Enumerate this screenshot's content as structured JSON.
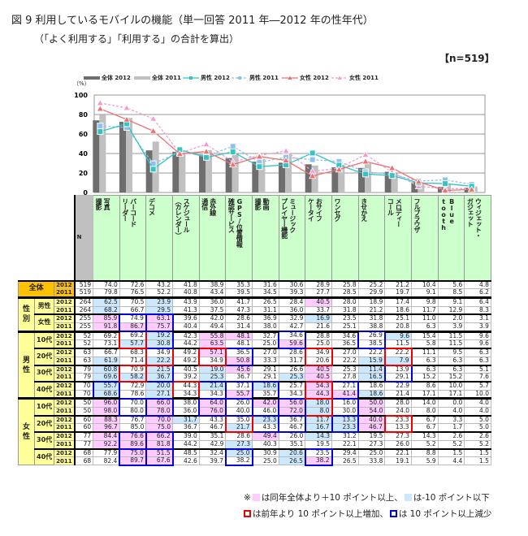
{
  "title": "図 9  利用しているモバイルの機能（単一回答  2011 年―2012 年の性年代）",
  "subtitle": "（「よく利用する」「利用する」の合計を算出）",
  "n_badge": "【n=519】",
  "colors": {
    "total2012": "#6e6e6e",
    "total2011": "#c0c0c0",
    "male2012": "#33c4c4",
    "male2011": "#8fc0f0",
    "female2012": "#f07070",
    "female2011": "#f59ccf",
    "pink": "#ffccff",
    "lightblue": "#cce8ff",
    "header_bg": "#ccffcc",
    "total_bg": "#ffc000",
    "group_bg": "#ffff99"
  },
  "chart_data": {
    "type": "bar+line",
    "ylabel": "（%）",
    "ylim": [
      0,
      100
    ],
    "yticks": [
      "0",
      "20",
      "40",
      "60",
      "80",
      "100"
    ],
    "grid": true,
    "legend_position": "top",
    "categories": [
      "写真撮影",
      "バーコードリーダー",
      "デコメ",
      "スケジュール（カレンダー）",
      "赤外線通信",
      "GPS/位置情報確認サービス",
      "動画撮影",
      "ミュージックプレイヤー機能",
      "おサイフケータイ",
      "ワンセグ",
      "きせかえ",
      "メロディーコール",
      "フルブラウザ",
      "Bluetooth",
      "ウィジェット・ガジェット"
    ],
    "series": [
      {
        "name": "全体 2012",
        "kind": "bar",
        "values": [
          74.0,
          72.6,
          43.2,
          41.8,
          38.9,
          35.3,
          31.6,
          30.6,
          28.9,
          25.8,
          25.2,
          21.2,
          10.4,
          5.6,
          4.8
        ]
      },
      {
        "name": "全体 2011",
        "kind": "bar",
        "values": [
          79.8,
          76.5,
          52.2,
          40.8,
          43.4,
          39.5,
          34.5,
          39.3,
          27.7,
          28.5,
          29.9,
          19.7,
          9.1,
          8.5,
          6.2
        ]
      },
      {
        "name": "男性 2012",
        "kind": "line",
        "marker": "square",
        "dashed": false,
        "values": [
          62.5,
          70.5,
          23.9,
          43.9,
          36.0,
          41.7,
          26.5,
          28.4,
          40.5,
          28.0,
          18.9,
          17.4,
          9.8,
          9.1,
          6.4
        ]
      },
      {
        "name": "男性 2011",
        "kind": "line",
        "marker": "square",
        "dashed": true,
        "values": [
          68.2,
          66.7,
          29.5,
          41.3,
          37.5,
          47.3,
          31.1,
          36.0,
          33.7,
          31.8,
          21.2,
          18.6,
          11.7,
          12.9,
          8.3
        ]
      },
      {
        "name": "女性 2012",
        "kind": "line",
        "marker": "triangle",
        "dashed": false,
        "values": [
          85.9,
          74.9,
          63.1,
          39.6,
          42.0,
          28.6,
          36.9,
          32.9,
          16.9,
          23.5,
          31.8,
          25.1,
          11.0,
          2.0,
          3.1
        ]
      },
      {
        "name": "女性 2011",
        "kind": "line",
        "marker": "triangle",
        "dashed": true,
        "values": [
          91.8,
          86.7,
          75.7,
          40.4,
          49.4,
          31.4,
          38.0,
          42.7,
          21.6,
          25.1,
          38.8,
          20.8,
          6.3,
          3.9,
          3.9
        ]
      }
    ]
  },
  "table": {
    "n_header": "N",
    "columns": [
      "写真\n撮影",
      "バーコード\nリーダー",
      "デコメ",
      "スケジュール\n（カレンダー）",
      "赤外線\n通信",
      "GPS/位置情報\n確認サービス",
      "動画\n撮影",
      "ミュージック\nプレイヤー機能",
      "おサイフ\nケータイ",
      "ワンセグ",
      "きせかえ",
      "メロディー\nコール",
      "フルブラウザ",
      "Blue\ntooth",
      "ウィジェット・\nガジェット"
    ],
    "sections": [
      {
        "group": "",
        "subgroups": [
          {
            "label": "全体",
            "rows": [
              {
                "year": "2012",
                "n": "519",
                "values": [
                  "74.0",
                  "72.6",
                  "43.2",
                  "41.8",
                  "38.9",
                  "35.3",
                  "31.6",
                  "30.6",
                  "28.9",
                  "25.8",
                  "25.2",
                  "21.2",
                  "10.4",
                  "5.6",
                  "4.8"
                ],
                "fill": "...............",
                "box": "..............."
              },
              {
                "year": "2011",
                "n": "519",
                "values": [
                  "79.8",
                  "76.5",
                  "52.2",
                  "40.8",
                  "43.4",
                  "39.5",
                  "34.5",
                  "39.3",
                  "27.7",
                  "28.5",
                  "29.9",
                  "19.7",
                  "9.1",
                  "8.5",
                  "6.2"
                ],
                "fill": "..............."
              }
            ]
          }
        ]
      },
      {
        "group": "性別",
        "subgroups": [
          {
            "label": "男性",
            "rows": [
              {
                "year": "2012",
                "n": "264",
                "values": [
                  "62.5",
                  "70.5",
                  "23.9",
                  "43.9",
                  "36.0",
                  "41.7",
                  "26.5",
                  "28.4",
                  "40.5",
                  "28.0",
                  "18.9",
                  "17.4",
                  "9.8",
                  "9.1",
                  "6.4"
                ],
                "fill": "b.b.....p......",
                "box": "..............."
              },
              {
                "year": "2011",
                "n": "264",
                "values": [
                  "68.2",
                  "66.7",
                  "29.5",
                  "41.3",
                  "37.5",
                  "47.3",
                  "31.1",
                  "36.0",
                  "33.7",
                  "31.8",
                  "21.2",
                  "18.6",
                  "11.7",
                  "12.9",
                  "8.3"
                ],
                "fill": "b.b............"
              }
            ]
          },
          {
            "label": "女性",
            "rows": [
              {
                "year": "2012",
                "n": "255",
                "values": [
                  "85.9",
                  "74.9",
                  "63.1",
                  "39.6",
                  "42.0",
                  "28.6",
                  "36.9",
                  "32.9",
                  "16.9",
                  "23.5",
                  "31.8",
                  "25.1",
                  "11.0",
                  "2.0",
                  "3.1"
                ],
                "fill": "p.p.....b......",
                "box": ".bb............"
              },
              {
                "year": "2011",
                "n": "255",
                "values": [
                  "91.8",
                  "86.7",
                  "75.7",
                  "40.4",
                  "49.4",
                  "31.4",
                  "38.0",
                  "42.7",
                  "21.6",
                  "25.1",
                  "38.8",
                  "20.8",
                  "6.3",
                  "3.9",
                  "3.9"
                ],
                "fill": "ppp............"
              }
            ]
          }
        ]
      },
      {
        "group": "男性",
        "subgroups": [
          {
            "label": "10代",
            "rows": [
              {
                "year": "2012",
                "n": "52",
                "values": [
                  "69.2",
                  "69.2",
                  "19.2",
                  "42.3",
                  "55.8",
                  "48.1",
                  "32.7",
                  "34.6",
                  "28.8",
                  "34.6",
                  "26.9",
                  "9.6",
                  "15.4",
                  "11.5",
                  "9.6"
                ],
                "fill": "..b.pp.....b...",
                "box": ".rb....b..b...."
              },
              {
                "year": "2011",
                "n": "52",
                "values": [
                  "73.1",
                  "57.7",
                  "30.8",
                  "44.2",
                  "63.5",
                  "48.1",
                  "25.0",
                  "59.6",
                  "25.0",
                  "36.5",
                  "38.5",
                  "11.5",
                  "5.8",
                  "11.5",
                  "9.6"
                ],
                "fill": ".bb.p..p......."
              }
            ]
          },
          {
            "label": "20代",
            "rows": [
              {
                "year": "2012",
                "n": "63",
                "values": [
                  "66.7",
                  "68.3",
                  "34.9",
                  "49.2",
                  "57.1",
                  "36.5",
                  "27.0",
                  "28.6",
                  "34.9",
                  "27.0",
                  "22.2",
                  "22.2",
                  "11.1",
                  "9.5",
                  "6.3"
                ],
                "fill": "....p..........",
                "box": "..r.rb..r..r..."
              },
              {
                "year": "2011",
                "n": "63",
                "values": [
                  "61.9",
                  "71.4",
                  "22.2",
                  "49.2",
                  "34.9",
                  "50.8",
                  "33.3",
                  "31.7",
                  "20.6",
                  "22.2",
                  "15.9",
                  "7.9",
                  "6.3",
                  "6.3",
                  "6.3"
                ],
                "fill": "b.b..p....bb..."
              }
            ]
          },
          {
            "label": "30代",
            "rows": [
              {
                "year": "2012",
                "n": "79",
                "values": [
                  "60.8",
                  "70.9",
                  "21.5",
                  "40.5",
                  "19.0",
                  "45.6",
                  "29.1",
                  "26.6",
                  "40.5",
                  "25.3",
                  "11.4",
                  "13.9",
                  "6.3",
                  "6.3",
                  "5.1"
                ],
                "fill": "b.b.bp..p.b....",
                "box": ".rb........b..."
              },
              {
                "year": "2011",
                "n": "79",
                "values": [
                  "69.6",
                  "58.2",
                  "36.7",
                  "39.2",
                  "25.3",
                  "36.7",
                  "29.1",
                  "25.3",
                  "40.5",
                  "27.8",
                  "16.5",
                  "29.1",
                  "15.2",
                  "15.2",
                  "7.6"
                ],
                "fill": "bbb.b..bp.b...."
              }
            ]
          },
          {
            "label": "40代",
            "rows": [
              {
                "year": "2012",
                "n": "70",
                "values": [
                  "55.7",
                  "72.9",
                  "20.0",
                  "44.3",
                  "21.4",
                  "37.1",
                  "18.6",
                  "25.7",
                  "54.3",
                  "27.1",
                  "18.6",
                  "22.9",
                  "8.6",
                  "10.0",
                  "5.7"
                ],
                "fill": "b.b.b.b.p......",
                "box": "b..rbbb.rb....."
              },
              {
                "year": "2011",
                "n": "70",
                "values": [
                  "68.6",
                  "78.6",
                  "27.1",
                  "34.3",
                  "34.3",
                  "55.7",
                  "35.7",
                  "34.3",
                  "44.3",
                  "41.4",
                  "18.6",
                  "21.4",
                  "17.1",
                  "17.1",
                  "10.0"
                ],
                "fill": "b.b..p..ppb...."
              }
            ]
          }
        ]
      },
      {
        "group": "女性",
        "subgroups": [
          {
            "label": "10代",
            "rows": [
              {
                "year": "2012",
                "n": "50",
                "values": [
                  "96.0",
                  "70.0",
                  "66.0",
                  "38.0",
                  "64.0",
                  "26.0",
                  "42.0",
                  "56.0",
                  "18.0",
                  "16.0",
                  "50.0",
                  "28.0",
                  "14.0",
                  "0.0",
                  "4.0"
                ],
                "fill": "p.p.p.ppb.p....",
                "box": ".bb.bb.brb....."
              },
              {
                "year": "2011",
                "n": "50",
                "values": [
                  "98.0",
                  "80.0",
                  "78.0",
                  "36.0",
                  "76.0",
                  "40.0",
                  "46.0",
                  "72.0",
                  "8.0",
                  "30.0",
                  "54.0",
                  "24.0",
                  "8.0",
                  "4.0",
                  "4.0"
                ],
                "fill": "p.p.p..pb.p...."
              }
            ]
          },
          {
            "label": "20代",
            "rows": [
              {
                "year": "2012",
                "n": "60",
                "values": [
                  "88.3",
                  "76.7",
                  "70.0",
                  "31.7",
                  "43.3",
                  "35.0",
                  "23.3",
                  "36.7",
                  "11.7",
                  "13.3",
                  "40.0",
                  "23.3",
                  "6.7",
                  "3.3",
                  "5.0"
                ],
                "fill": "p.pb..b.bbp....",
                "box": ".....rbb.b.r..."
              },
              {
                "year": "2011",
                "n": "60",
                "values": [
                  "96.7",
                  "85.0",
                  "75.0",
                  "36.7",
                  "46.7",
                  "21.7",
                  "43.3",
                  "46.7",
                  "16.7",
                  "23.3",
                  "46.7",
                  "13.3",
                  "6.7",
                  "1.7",
                  "5.0"
                ],
                "fill": "p.p..b..bbp...."
              }
            ]
          },
          {
            "label": "30代",
            "rows": [
              {
                "year": "2012",
                "n": "77",
                "values": [
                  "84.4",
                  "76.6",
                  "66.2",
                  "39.0",
                  "35.1",
                  "28.6",
                  "49.4",
                  "26.0",
                  "14.3",
                  "31.2",
                  "19.5",
                  "27.3",
                  "14.3",
                  "2.6",
                  "2.6"
                ],
                "fill": "ppp...p.b......",
                "box": ".bb............"
              },
              {
                "year": "2011",
                "n": "77",
                "values": [
                  "92.2",
                  "89.6",
                  "81.8",
                  "44.2",
                  "42.9",
                  "27.3",
                  "40.3",
                  "35.1",
                  "19.5",
                  "22.1",
                  "27.3",
                  "26.0",
                  "5.2",
                  "5.2",
                  "5.2"
                ],
                "fill": "ppp..b........."
              }
            ]
          },
          {
            "label": "40代",
            "rows": [
              {
                "year": "2012",
                "n": "68",
                "values": [
                  "77.9",
                  "75.0",
                  "51.5",
                  "48.5",
                  "32.4",
                  "25.0",
                  "30.9",
                  "20.6",
                  "23.5",
                  "29.4",
                  "25.0",
                  "22.1",
                  "8.8",
                  "1.5",
                  "1.5"
                ],
                "fill": ".pp..b.b.......",
                "box": ".bb..b..b......"
              },
              {
                "year": "2011",
                "n": "68",
                "values": [
                  "82.4",
                  "89.7",
                  "67.6",
                  "42.6",
                  "39.7",
                  "38.2",
                  "25.0",
                  "26.5",
                  "38.2",
                  "26.5",
                  "33.8",
                  "19.1",
                  "5.9",
                  "4.4",
                  "1.5"
                ],
                "fill": ".pp....bp......"
              }
            ]
          }
        ]
      }
    ]
  },
  "notes": {
    "mark": "※",
    "pink_text": "は同年全体より＋10 ポイント以上、",
    "blue_text": "は-10 ポイント以下",
    "red_box_text": "は前年より 10 ポイント以上増加、",
    "blue_box_text": "は 10 ポイント以上減少"
  }
}
